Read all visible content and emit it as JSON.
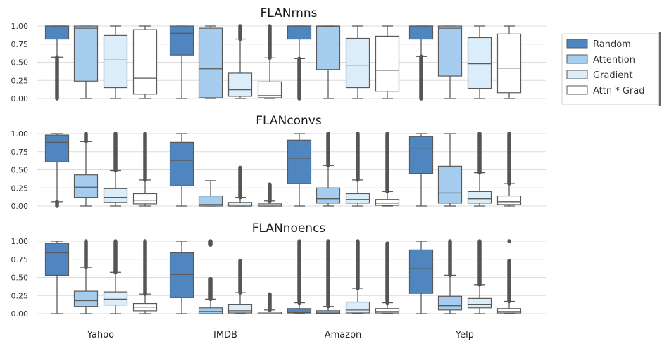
{
  "chart_data": {
    "type": "box",
    "categories": [
      "Yahoo",
      "IMDB",
      "Amazon",
      "Yelp"
    ],
    "ylim": [
      0,
      1
    ],
    "yticks": [
      "0.00",
      "0.25",
      "0.50",
      "0.75",
      "1.00"
    ],
    "grid": true,
    "legend_placement": "right",
    "series": [
      {
        "name": "Random",
        "color": "#4f86c0"
      },
      {
        "name": "Attention",
        "color": "#a6cdee"
      },
      {
        "name": "Gradient",
        "color": "#dcedfa"
      },
      {
        "name": "Attn * Grad",
        "color": "#ffffff"
      }
    ],
    "panels": [
      {
        "title": "FLANrnns",
        "boxes": [
          [
            {
              "wlo": 0.57,
              "q1": 0.82,
              "med": 1.0,
              "q3": 1.0,
              "whi": 1.0,
              "flo": [
                0.0,
                0.57
              ]
            },
            {
              "wlo": 0.0,
              "q1": 0.24,
              "med": 0.97,
              "q3": 1.0,
              "whi": 1.0
            },
            {
              "wlo": 0.0,
              "q1": 0.15,
              "med": 0.53,
              "q3": 0.87,
              "whi": 1.0
            },
            {
              "wlo": 0.0,
              "q1": 0.06,
              "med": 0.28,
              "q3": 0.95,
              "whi": 1.0
            }
          ],
          [
            {
              "wlo": 0.0,
              "q1": 0.6,
              "med": 0.9,
              "q3": 1.0,
              "whi": 1.0
            },
            {
              "wlo": 0.0,
              "q1": 0.01,
              "med": 0.41,
              "q3": 0.97,
              "whi": 1.0
            },
            {
              "wlo": 0.0,
              "q1": 0.03,
              "med": 0.12,
              "q3": 0.35,
              "whi": 0.82,
              "fhi": [
                0.82,
                1.0
              ]
            },
            {
              "wlo": 0.0,
              "q1": 0.01,
              "med": 0.04,
              "q3": 0.23,
              "whi": 0.56,
              "fhi": [
                0.56,
                1.0
              ]
            }
          ],
          [
            {
              "wlo": 0.55,
              "q1": 0.82,
              "med": 1.0,
              "q3": 1.0,
              "whi": 1.0,
              "flo": [
                0.0,
                0.55
              ]
            },
            {
              "wlo": 0.0,
              "q1": 0.4,
              "med": 0.99,
              "q3": 1.0,
              "whi": 1.0
            },
            {
              "wlo": 0.0,
              "q1": 0.15,
              "med": 0.46,
              "q3": 0.83,
              "whi": 1.0
            },
            {
              "wlo": 0.0,
              "q1": 0.1,
              "med": 0.39,
              "q3": 0.86,
              "whi": 1.0
            }
          ],
          [
            {
              "wlo": 0.58,
              "q1": 0.82,
              "med": 1.0,
              "q3": 1.0,
              "whi": 1.0,
              "flo": [
                0.0,
                0.58
              ]
            },
            {
              "wlo": 0.0,
              "q1": 0.31,
              "med": 0.97,
              "q3": 1.0,
              "whi": 1.0
            },
            {
              "wlo": 0.0,
              "q1": 0.14,
              "med": 0.48,
              "q3": 0.84,
              "whi": 1.0
            },
            {
              "wlo": 0.0,
              "q1": 0.08,
              "med": 0.42,
              "q3": 0.89,
              "whi": 1.0
            }
          ]
        ]
      },
      {
        "title": "FLANconvs",
        "boxes": [
          [
            {
              "wlo": 0.06,
              "q1": 0.61,
              "med": 0.88,
              "q3": 0.98,
              "whi": 1.0,
              "flo": [
                0.0,
                0.06
              ]
            },
            {
              "wlo": 0.0,
              "q1": 0.12,
              "med": 0.26,
              "q3": 0.43,
              "whi": 0.89,
              "fhi": [
                0.89,
                1.0
              ]
            },
            {
              "wlo": 0.0,
              "q1": 0.05,
              "med": 0.12,
              "q3": 0.24,
              "whi": 0.49,
              "fhi": [
                0.49,
                1.0
              ]
            },
            {
              "wlo": 0.0,
              "q1": 0.03,
              "med": 0.08,
              "q3": 0.17,
              "whi": 0.36,
              "fhi": [
                0.36,
                1.0
              ]
            }
          ],
          [
            {
              "wlo": 0.0,
              "q1": 0.28,
              "med": 0.63,
              "q3": 0.88,
              "whi": 1.0
            },
            {
              "wlo": 0.0,
              "q1": 0.0,
              "med": 0.02,
              "q3": 0.14,
              "whi": 0.35
            },
            {
              "wlo": 0.0,
              "q1": 0.0,
              "med": 0.0,
              "q3": 0.05,
              "whi": 0.12,
              "fhi": [
                0.12,
                0.53
              ]
            },
            {
              "wlo": 0.0,
              "q1": 0.0,
              "med": 0.0,
              "q3": 0.03,
              "whi": 0.07,
              "fhi": [
                0.07,
                0.3
              ]
            }
          ],
          [
            {
              "wlo": 0.0,
              "q1": 0.31,
              "med": 0.66,
              "q3": 0.91,
              "whi": 1.0
            },
            {
              "wlo": 0.0,
              "q1": 0.04,
              "med": 0.1,
              "q3": 0.25,
              "whi": 0.56,
              "fhi": [
                0.56,
                1.0
              ]
            },
            {
              "wlo": 0.0,
              "q1": 0.04,
              "med": 0.09,
              "q3": 0.17,
              "whi": 0.36,
              "fhi": [
                0.36,
                1.0
              ]
            },
            {
              "wlo": 0.0,
              "q1": 0.01,
              "med": 0.04,
              "q3": 0.09,
              "whi": 0.2,
              "fhi": [
                0.2,
                1.0
              ]
            }
          ],
          [
            {
              "wlo": 0.0,
              "q1": 0.45,
              "med": 0.8,
              "q3": 0.96,
              "whi": 1.0
            },
            {
              "wlo": 0.0,
              "q1": 0.04,
              "med": 0.18,
              "q3": 0.55,
              "whi": 1.0
            },
            {
              "wlo": 0.0,
              "q1": 0.04,
              "med": 0.1,
              "q3": 0.2,
              "whi": 0.46,
              "fhi": [
                0.46,
                1.0
              ]
            },
            {
              "wlo": 0.0,
              "q1": 0.02,
              "med": 0.06,
              "q3": 0.14,
              "whi": 0.31,
              "fhi": [
                0.31,
                1.0
              ]
            }
          ]
        ]
      },
      {
        "title": "FLANnoencs",
        "boxes": [
          [
            {
              "wlo": 0.0,
              "q1": 0.53,
              "med": 0.84,
              "q3": 0.97,
              "whi": 1.0
            },
            {
              "wlo": 0.0,
              "q1": 0.1,
              "med": 0.18,
              "q3": 0.31,
              "whi": 0.64,
              "fhi": [
                0.64,
                1.0
              ]
            },
            {
              "wlo": 0.0,
              "q1": 0.12,
              "med": 0.2,
              "q3": 0.3,
              "whi": 0.57,
              "fhi": [
                0.57,
                1.0
              ]
            },
            {
              "wlo": 0.0,
              "q1": 0.04,
              "med": 0.09,
              "q3": 0.14,
              "whi": 0.27,
              "fhi": [
                0.27,
                1.0
              ]
            }
          ],
          [
            {
              "wlo": 0.0,
              "q1": 0.22,
              "med": 0.54,
              "q3": 0.84,
              "whi": 1.0
            },
            {
              "wlo": 0.0,
              "q1": 0.0,
              "med": 0.03,
              "q3": 0.08,
              "whi": 0.2,
              "fhi": [
                0.2,
                0.48
              ],
              "ftop": [
                0.95,
                1.0
              ]
            },
            {
              "wlo": 0.0,
              "q1": 0.01,
              "med": 0.04,
              "q3": 0.13,
              "whi": 0.29,
              "fhi": [
                0.29,
                0.73
              ]
            },
            {
              "wlo": 0.0,
              "q1": 0.0,
              "med": 0.0,
              "q3": 0.02,
              "whi": 0.05,
              "fhi": [
                0.05,
                0.27
              ]
            }
          ],
          [
            {
              "wlo": 0.0,
              "q1": 0.01,
              "med": 0.02,
              "q3": 0.07,
              "whi": 0.15,
              "fhi": [
                0.15,
                1.0
              ]
            },
            {
              "wlo": 0.0,
              "q1": 0.0,
              "med": 0.01,
              "q3": 0.04,
              "whi": 0.1,
              "fhi": [
                0.1,
                1.0
              ]
            },
            {
              "wlo": 0.0,
              "q1": 0.01,
              "med": 0.05,
              "q3": 0.16,
              "whi": 0.35,
              "fhi": [
                0.35,
                1.0
              ]
            },
            {
              "wlo": 0.0,
              "q1": 0.01,
              "med": 0.03,
              "q3": 0.07,
              "whi": 0.15,
              "fhi": [
                0.15,
                0.97
              ]
            }
          ],
          [
            {
              "wlo": 0.0,
              "q1": 0.28,
              "med": 0.62,
              "q3": 0.88,
              "whi": 1.0
            },
            {
              "wlo": 0.0,
              "q1": 0.05,
              "med": 0.11,
              "q3": 0.24,
              "whi": 0.53,
              "fhi": [
                0.53,
                1.0
              ]
            },
            {
              "wlo": 0.0,
              "q1": 0.08,
              "med": 0.13,
              "q3": 0.21,
              "whi": 0.4,
              "fhi": [
                0.4,
                1.0
              ]
            },
            {
              "wlo": 0.0,
              "q1": 0.01,
              "med": 0.03,
              "q3": 0.07,
              "whi": 0.17,
              "fhi": [
                0.17,
                0.73
              ],
              "ftop": [
                1.0,
                1.0
              ]
            }
          ]
        ]
      }
    ]
  }
}
